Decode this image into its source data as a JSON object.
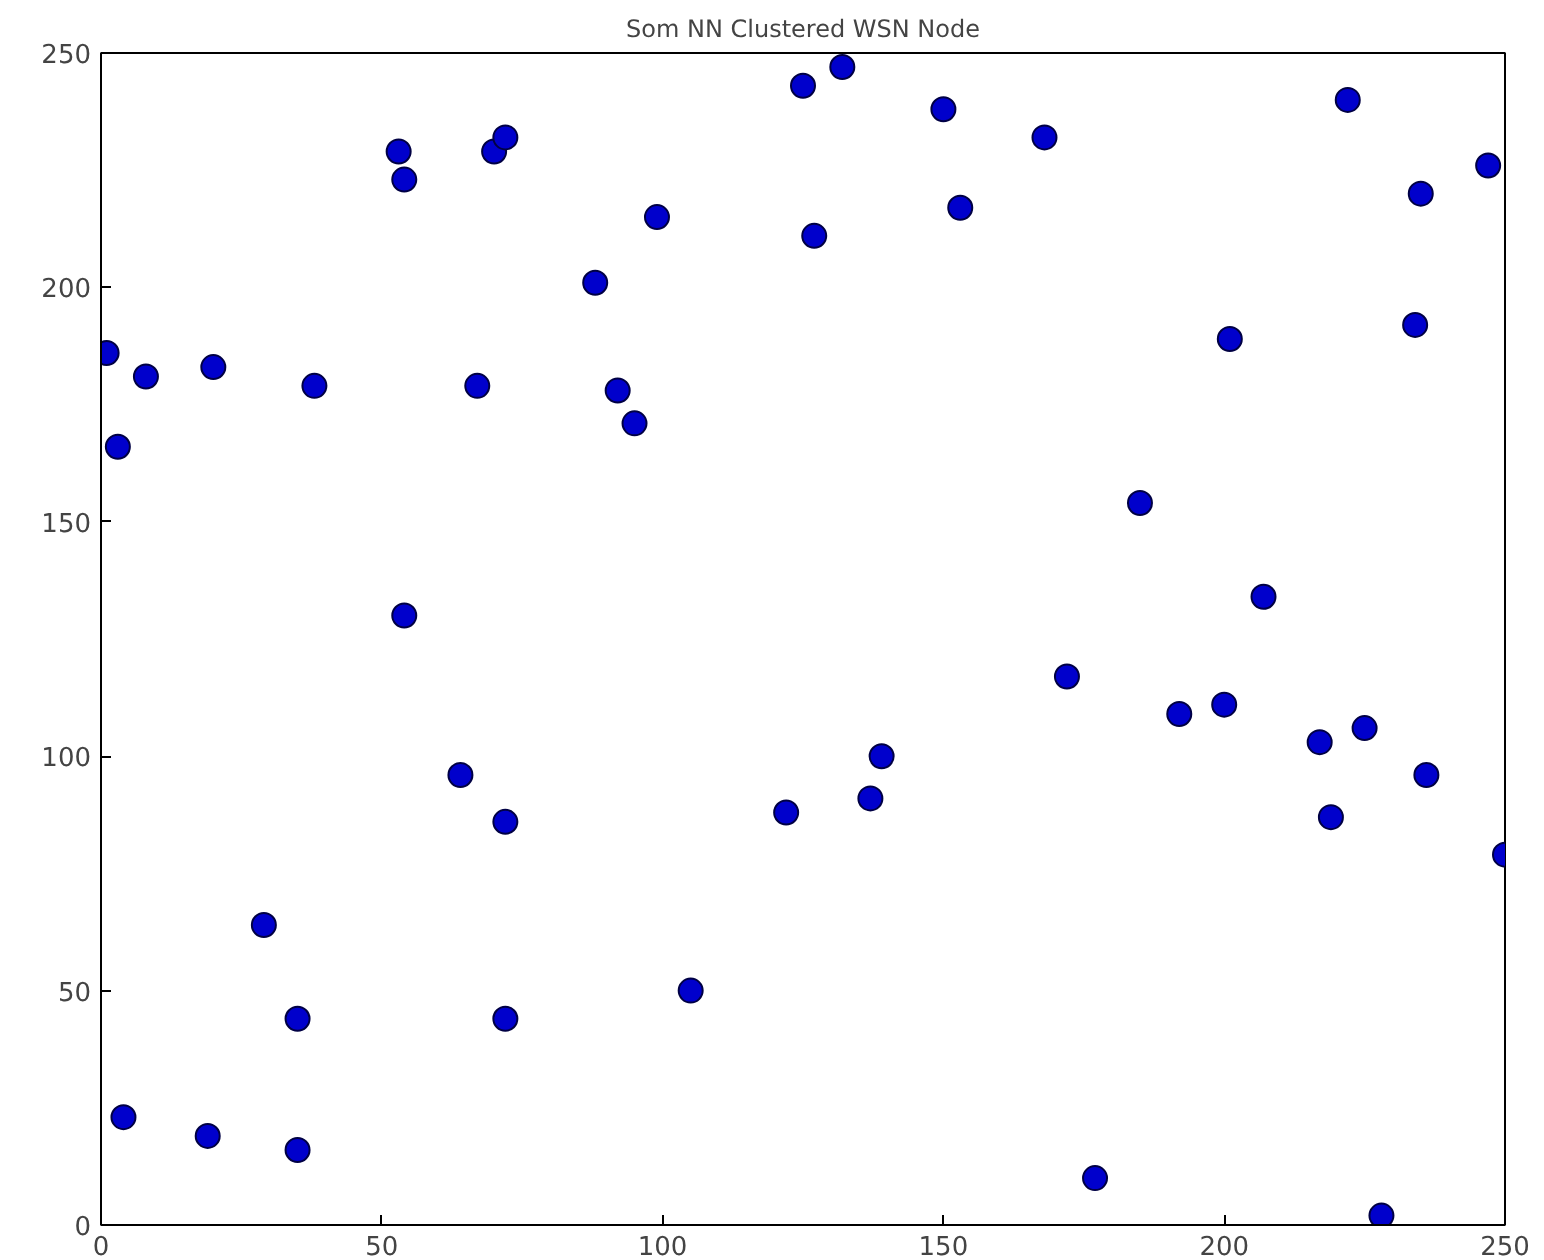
{
  "chart_data": {
    "type": "scatter",
    "title": "Som NN Clustered WSN Node",
    "marker": "circle",
    "grid": false,
    "x": [
      1,
      3,
      8,
      20,
      38,
      53,
      54,
      67,
      70,
      72,
      54,
      88,
      92,
      95,
      99,
      125,
      127,
      132,
      150,
      153,
      168,
      172,
      185,
      192,
      201,
      200,
      207,
      217,
      219,
      222,
      225,
      234,
      235,
      236,
      247,
      250,
      4,
      19,
      29,
      35,
      35,
      64,
      72,
      72,
      105,
      122,
      137,
      139,
      177,
      228
    ],
    "series": [
      {
        "color": "#0000cc",
        "values": [
          186,
          166,
          181,
          183,
          179,
          229,
          223,
          179,
          229,
          232,
          130,
          201,
          178,
          171,
          215,
          243,
          211,
          247,
          238,
          217,
          232,
          117,
          154,
          109,
          189,
          111,
          134,
          103,
          87,
          240,
          106,
          192,
          220,
          96,
          226,
          79,
          23,
          19,
          64,
          44,
          16,
          96,
          86,
          44,
          50,
          88,
          91,
          100,
          10,
          2
        ]
      }
    ],
    "xlim": [
      0,
      250
    ],
    "ylim": [
      0,
      250
    ],
    "xticks": [
      0,
      50,
      100,
      150,
      200,
      250
    ],
    "yticks": [
      0,
      50,
      100,
      150,
      200,
      250
    ]
  }
}
